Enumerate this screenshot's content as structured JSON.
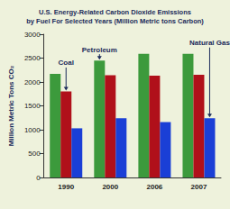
{
  "chart_data": {
    "type": "bar",
    "title": "U.S. Energy-Related Carbon Dioxide Emissions\nby Fuel For Selected Years (Million Metric tons Carbon)",
    "ylabel": "Million Metric Tons CO₂",
    "categories": [
      "1990",
      "2000",
      "2006",
      "2007"
    ],
    "series": [
      {
        "name": "Petroleum",
        "color": "#3c9a3c",
        "values": [
          2170,
          2450,
          2590,
          2590
        ]
      },
      {
        "name": "Coal",
        "color": "#b0101a",
        "values": [
          1800,
          2140,
          2130,
          2150
        ]
      },
      {
        "name": "Natural Gas",
        "color": "#1a3fd6",
        "values": [
          1030,
          1240,
          1160,
          1240
        ]
      }
    ],
    "ylim": [
      0,
      3000
    ],
    "yticks": [
      0,
      500,
      1000,
      1500,
      2000,
      2500,
      3000
    ],
    "grid": false
  }
}
